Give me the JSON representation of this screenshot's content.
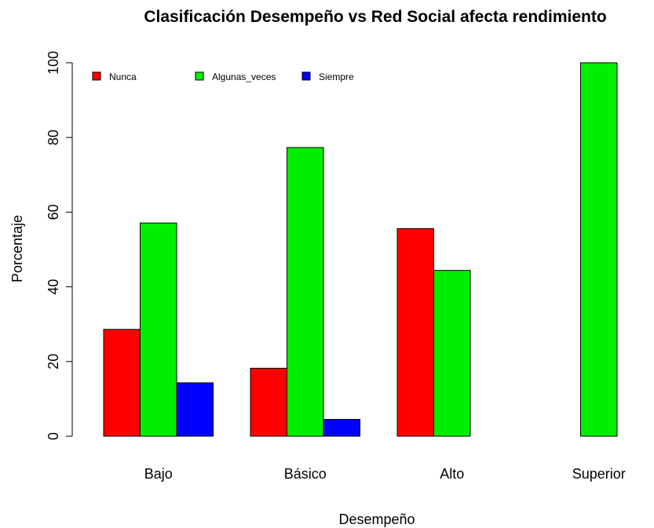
{
  "chart_data": {
    "type": "bar",
    "title": "Clasificación Desempeño vs Red Social afecta rendimiento",
    "xlabel": "Desempeño",
    "ylabel": "Porcentaje",
    "categories": [
      "Bajo",
      "Básico",
      "Alto",
      "Superior"
    ],
    "series": [
      {
        "name": "Nunca",
        "color": "#ff0000",
        "values": [
          28.6,
          18.2,
          55.6,
          0
        ]
      },
      {
        "name": "Algunas_veces",
        "color": "#00ee00",
        "values": [
          57.1,
          77.3,
          44.4,
          100
        ]
      },
      {
        "name": "Siempre",
        "color": "#0000ff",
        "values": [
          14.3,
          4.5,
          0,
          0
        ]
      }
    ],
    "yticks": [
      0,
      20,
      40,
      60,
      80,
      100
    ],
    "ylim": [
      0,
      100
    ],
    "legend_position": "top-left",
    "grid": false
  }
}
